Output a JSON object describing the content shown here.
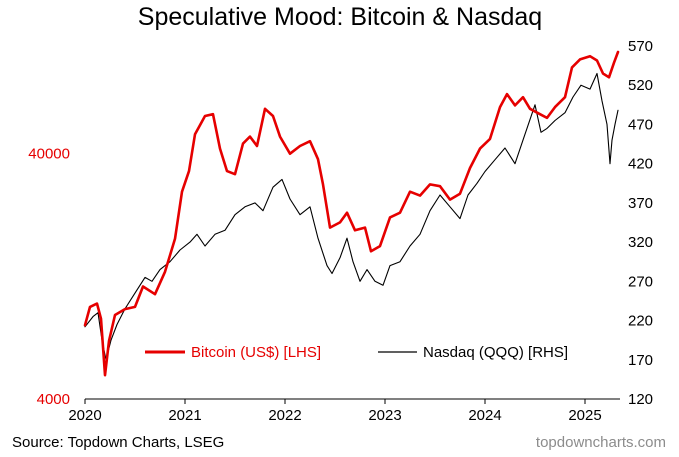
{
  "chart_data": {
    "type": "line",
    "title": "Speculative Mood: Bitcoin & Nasdaq",
    "x_axis": {
      "ticks": [
        "2020",
        "2021",
        "2022",
        "2023",
        "2024",
        "2025"
      ],
      "range": [
        2020.0,
        2025.35
      ]
    },
    "left_axis": {
      "scale": "log",
      "ticks": [
        "4000",
        "40000"
      ],
      "range": [
        4000,
        110000
      ],
      "color": "#e60000"
    },
    "right_axis": {
      "scale": "linear",
      "ticks": [
        "120",
        "170",
        "220",
        "270",
        "320",
        "370",
        "420",
        "470",
        "520",
        "570"
      ],
      "range": [
        120,
        570
      ]
    },
    "legend": {
      "position": "bottom-center"
    },
    "series": [
      {
        "name": "Bitcoin (US$) [LHS]",
        "axis": "left",
        "color": "#e60000",
        "points": [
          [
            2020.0,
            8000
          ],
          [
            2020.05,
            9500
          ],
          [
            2020.12,
            9800
          ],
          [
            2020.16,
            8500
          ],
          [
            2020.2,
            5000
          ],
          [
            2020.24,
            6900
          ],
          [
            2020.3,
            8800
          ],
          [
            2020.4,
            9300
          ],
          [
            2020.5,
            9500
          ],
          [
            2020.58,
            11500
          ],
          [
            2020.7,
            10700
          ],
          [
            2020.8,
            13200
          ],
          [
            2020.9,
            18000
          ],
          [
            2020.97,
            28000
          ],
          [
            2021.04,
            34000
          ],
          [
            2021.1,
            48000
          ],
          [
            2021.2,
            57000
          ],
          [
            2021.28,
            58000
          ],
          [
            2021.35,
            42000
          ],
          [
            2021.42,
            34000
          ],
          [
            2021.5,
            33000
          ],
          [
            2021.58,
            44000
          ],
          [
            2021.65,
            47000
          ],
          [
            2021.72,
            43000
          ],
          [
            2021.8,
            61000
          ],
          [
            2021.88,
            57000
          ],
          [
            2021.95,
            47000
          ],
          [
            2022.05,
            40000
          ],
          [
            2022.15,
            43000
          ],
          [
            2022.25,
            45000
          ],
          [
            2022.33,
            38000
          ],
          [
            2022.38,
            30000
          ],
          [
            2022.45,
            20000
          ],
          [
            2022.55,
            21000
          ],
          [
            2022.62,
            23000
          ],
          [
            2022.7,
            19500
          ],
          [
            2022.8,
            20000
          ],
          [
            2022.86,
            16000
          ],
          [
            2022.95,
            16800
          ],
          [
            2023.05,
            22000
          ],
          [
            2023.15,
            23000
          ],
          [
            2023.25,
            28000
          ],
          [
            2023.35,
            27000
          ],
          [
            2023.45,
            30000
          ],
          [
            2023.55,
            29500
          ],
          [
            2023.65,
            26000
          ],
          [
            2023.75,
            27500
          ],
          [
            2023.85,
            35000
          ],
          [
            2023.95,
            42000
          ],
          [
            2024.05,
            46000
          ],
          [
            2024.15,
            62000
          ],
          [
            2024.22,
            70000
          ],
          [
            2024.3,
            63000
          ],
          [
            2024.38,
            68000
          ],
          [
            2024.45,
            61000
          ],
          [
            2024.55,
            58000
          ],
          [
            2024.62,
            56000
          ],
          [
            2024.7,
            62000
          ],
          [
            2024.8,
            68000
          ],
          [
            2024.87,
            90000
          ],
          [
            2024.95,
            97000
          ],
          [
            2025.05,
            100000
          ],
          [
            2025.12,
            96000
          ],
          [
            2025.18,
            85000
          ],
          [
            2025.24,
            82000
          ],
          [
            2025.29,
            94000
          ],
          [
            2025.33,
            104000
          ]
        ]
      },
      {
        "name": "Nasdaq (QQQ) [RHS]",
        "axis": "right",
        "color": "#000000",
        "points": [
          [
            2020.0,
            212
          ],
          [
            2020.08,
            225
          ],
          [
            2020.13,
            230
          ],
          [
            2020.17,
            195
          ],
          [
            2020.21,
            170
          ],
          [
            2020.26,
            195
          ],
          [
            2020.32,
            215
          ],
          [
            2020.4,
            235
          ],
          [
            2020.5,
            255
          ],
          [
            2020.6,
            275
          ],
          [
            2020.67,
            270
          ],
          [
            2020.75,
            285
          ],
          [
            2020.85,
            295
          ],
          [
            2020.95,
            310
          ],
          [
            2021.05,
            320
          ],
          [
            2021.12,
            330
          ],
          [
            2021.2,
            315
          ],
          [
            2021.3,
            330
          ],
          [
            2021.4,
            335
          ],
          [
            2021.5,
            355
          ],
          [
            2021.6,
            365
          ],
          [
            2021.7,
            370
          ],
          [
            2021.78,
            360
          ],
          [
            2021.88,
            390
          ],
          [
            2021.97,
            400
          ],
          [
            2022.05,
            375
          ],
          [
            2022.15,
            355
          ],
          [
            2022.25,
            365
          ],
          [
            2022.33,
            325
          ],
          [
            2022.42,
            290
          ],
          [
            2022.47,
            280
          ],
          [
            2022.55,
            300
          ],
          [
            2022.62,
            325
          ],
          [
            2022.68,
            295
          ],
          [
            2022.75,
            270
          ],
          [
            2022.82,
            285
          ],
          [
            2022.9,
            270
          ],
          [
            2022.98,
            265
          ],
          [
            2023.05,
            290
          ],
          [
            2023.15,
            295
          ],
          [
            2023.25,
            315
          ],
          [
            2023.35,
            330
          ],
          [
            2023.45,
            360
          ],
          [
            2023.55,
            380
          ],
          [
            2023.65,
            365
          ],
          [
            2023.75,
            350
          ],
          [
            2023.83,
            380
          ],
          [
            2023.92,
            395
          ],
          [
            2024.0,
            410
          ],
          [
            2024.1,
            425
          ],
          [
            2024.2,
            440
          ],
          [
            2024.3,
            420
          ],
          [
            2024.38,
            450
          ],
          [
            2024.5,
            495
          ],
          [
            2024.56,
            460
          ],
          [
            2024.62,
            465
          ],
          [
            2024.7,
            475
          ],
          [
            2024.8,
            485
          ],
          [
            2024.88,
            505
          ],
          [
            2024.96,
            520
          ],
          [
            2025.05,
            515
          ],
          [
            2025.12,
            535
          ],
          [
            2025.17,
            500
          ],
          [
            2025.22,
            470
          ],
          [
            2025.25,
            420
          ],
          [
            2025.27,
            450
          ],
          [
            2025.3,
            470
          ],
          [
            2025.33,
            488
          ]
        ]
      }
    ]
  },
  "footer": {
    "source": "Source: Topdown Charts, LSEG",
    "watermark": "topdowncharts.com"
  }
}
